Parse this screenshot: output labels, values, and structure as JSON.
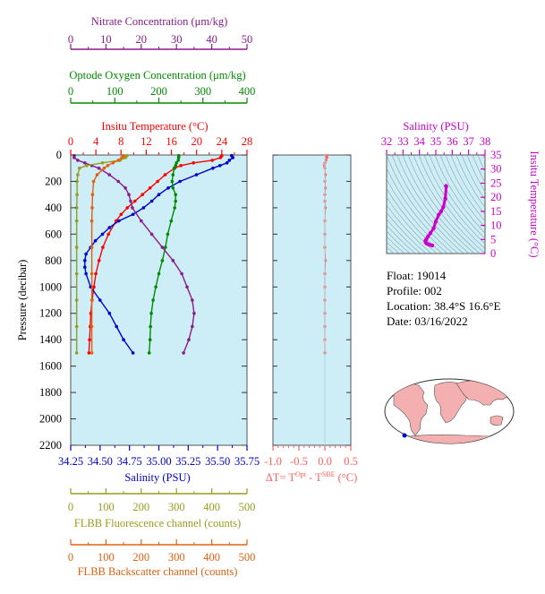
{
  "colors": {
    "nitrate": "#8b1a8b",
    "oxygen": "#008b00",
    "temperature": "#ff0000",
    "salinity": "#0000cd",
    "fluorescence": "#9b9b1e",
    "backscatter": "#e06010",
    "delta_t": "#ff6060",
    "ts_axis": "#cc00cc",
    "plot_bg": "#cdeef6",
    "land": "#f4b0b0"
  },
  "info": {
    "float": "Float:  19014",
    "profile": "Profile:  002",
    "location": "Location:  38.4°S  16.6°E",
    "date": "Date:  03/16/2022"
  },
  "chart_data": [
    {
      "type": "line",
      "name": "main-profile",
      "ylabel": "Pressure (decibar)",
      "ylim": [
        0,
        2200
      ],
      "yticks": [
        "0",
        "200",
        "400",
        "600",
        "800",
        "1000",
        "1200",
        "1400",
        "1600",
        "1800",
        "2000",
        "2200"
      ],
      "axes": {
        "nitrate": {
          "label": "Nitrate Concentration (μm/kg)",
          "range": [
            0,
            50
          ],
          "ticks": [
            "0",
            "10",
            "20",
            "30",
            "40",
            "50"
          ]
        },
        "oxygen": {
          "label": "Optode Oxygen Concentration (μm/kg)",
          "range": [
            0,
            400
          ],
          "ticks": [
            "0",
            "100",
            "200",
            "300",
            "400"
          ]
        },
        "temperature": {
          "label": "Insitu Temperature (°C)",
          "range": [
            0,
            28
          ],
          "ticks": [
            "0",
            "4",
            "8",
            "12",
            "16",
            "20",
            "24",
            "28"
          ]
        },
        "salinity": {
          "label": "Salinity (PSU)",
          "range": [
            34.25,
            35.75
          ],
          "ticks": [
            "34.25",
            "34.50",
            "34.75",
            "35.00",
            "35.25",
            "35.50",
            "35.75"
          ]
        },
        "fluorescence": {
          "label": "FLBB Fluorescence channel (counts)",
          "range": [
            0,
            500
          ],
          "ticks": [
            "0",
            "100",
            "200",
            "300",
            "400",
            "500"
          ]
        },
        "backscatter": {
          "label": "FLBB Backscatter channel (counts)",
          "range": [
            0,
            500
          ],
          "ticks": [
            "0",
            "100",
            "200",
            "300",
            "400",
            "500"
          ]
        }
      },
      "series": [
        {
          "key": "temperature",
          "pressure": [
            5,
            20,
            40,
            60,
            80,
            100,
            150,
            200,
            250,
            300,
            350,
            400,
            450,
            500,
            600,
            700,
            800,
            900,
            1000,
            1100,
            1200,
            1300,
            1400,
            1500
          ],
          "values": [
            24.0,
            23.8,
            22.5,
            19.5,
            17.5,
            16.5,
            15.0,
            13.8,
            12.6,
            11.4,
            10.2,
            9.0,
            8.0,
            7.2,
            6.0,
            5.1,
            4.5,
            4.0,
            3.7,
            3.4,
            3.2,
            3.1,
            3.0,
            2.9
          ]
        },
        {
          "key": "salinity",
          "pressure": [
            5,
            20,
            40,
            60,
            80,
            100,
            150,
            200,
            250,
            300,
            350,
            400,
            450,
            500,
            550,
            600,
            650,
            700,
            750,
            800,
            850,
            900,
            1000,
            1100,
            1200,
            1300,
            1400,
            1500
          ],
          "values": [
            35.62,
            35.63,
            35.6,
            35.58,
            35.52,
            35.46,
            35.32,
            35.18,
            35.08,
            35.0,
            34.94,
            34.87,
            34.78,
            34.66,
            34.58,
            34.52,
            34.46,
            34.42,
            34.38,
            34.37,
            34.37,
            34.38,
            34.42,
            34.5,
            34.58,
            34.64,
            34.7,
            34.78
          ]
        },
        {
          "key": "oxygen",
          "pressure": [
            5,
            20,
            40,
            60,
            80,
            100,
            150,
            200,
            250,
            300,
            350,
            400,
            500,
            600,
            700,
            800,
            900,
            1000,
            1100,
            1200,
            1300,
            1400,
            1500
          ],
          "values": [
            245,
            245,
            244,
            240,
            238,
            235,
            232,
            230,
            232,
            238,
            238,
            236,
            228,
            220,
            215,
            208,
            200,
            193,
            187,
            183,
            181,
            180,
            178
          ]
        },
        {
          "key": "nitrate",
          "pressure": [
            5,
            20,
            40,
            60,
            80,
            100,
            150,
            200,
            250,
            300,
            350,
            400,
            500,
            600,
            700,
            800,
            900,
            1000,
            1100,
            1200,
            1300,
            1400,
            1500
          ],
          "values": [
            1,
            1,
            2,
            4,
            6,
            8,
            11,
            13.5,
            15.5,
            16.5,
            17,
            17.5,
            20,
            23,
            26,
            29,
            31.5,
            33,
            34.5,
            35,
            34.5,
            33.5,
            32
          ]
        },
        {
          "key": "fluorescence",
          "pressure": [
            5,
            20,
            40,
            60,
            80,
            100,
            150,
            200,
            300,
            400,
            500,
            700,
            900,
            1100,
            1300,
            1500
          ],
          "values": [
            160,
            155,
            140,
            90,
            45,
            25,
            20,
            18,
            18,
            17,
            17,
            17,
            17,
            17,
            17,
            17
          ]
        },
        {
          "key": "backscatter",
          "pressure": [
            5,
            20,
            40,
            60,
            80,
            100,
            150,
            200,
            300,
            400,
            500,
            700,
            900,
            1100,
            1300,
            1500
          ],
          "values": [
            150,
            145,
            135,
            120,
            105,
            95,
            75,
            65,
            62,
            61,
            60,
            60,
            60,
            60,
            60,
            60
          ]
        }
      ]
    },
    {
      "type": "line",
      "name": "delta-t",
      "xlabel": "ΔT= T^Opt - T^SBE (°C)",
      "xlabel_main": "ΔT= T",
      "xlabel_sup1": "Opt",
      "xlabel_mid": " - T",
      "xlabel_sup2": "SBE",
      "xlabel_end": " (°C)",
      "xlim": [
        -1.0,
        0.5
      ],
      "xticks": [
        "-1.0",
        "-0.5",
        "0.0",
        "0.5"
      ],
      "series": [
        {
          "pressure": [
            5,
            20,
            40,
            60,
            80,
            100,
            150,
            200,
            250,
            300,
            350,
            400,
            500,
            600,
            700,
            800,
            900,
            1000,
            1100,
            1200,
            1300,
            1400,
            1500
          ],
          "values": [
            0.03,
            0.04,
            0.02,
            0.0,
            -0.01,
            0.0,
            0.01,
            0.0,
            0.01,
            0.0,
            0.0,
            0.01,
            0.0,
            0.0,
            0.0,
            0.01,
            0.0,
            0.0,
            0.0,
            0.0,
            0.0,
            0.0,
            0.0
          ]
        }
      ]
    },
    {
      "type": "scatter",
      "name": "t-s-diagram",
      "xlabel": "Salinity (PSU)",
      "ylabel": "Insitu Temperature (°C)",
      "xlim": [
        32,
        38
      ],
      "ylim": [
        0,
        35
      ],
      "xticks": [
        "32",
        "33",
        "34",
        "35",
        "36",
        "37",
        "38"
      ],
      "yticks": [
        "0",
        "5",
        "10",
        "15",
        "20",
        "25",
        "30",
        "35"
      ],
      "series": [
        {
          "salinity": [
            35.62,
            35.63,
            35.58,
            35.46,
            35.32,
            35.18,
            35.0,
            34.87,
            34.66,
            34.52,
            34.42,
            34.37,
            34.38,
            34.42,
            34.5,
            34.58,
            34.64,
            34.78
          ],
          "temperature": [
            24.0,
            23.8,
            19.5,
            16.5,
            15.0,
            13.8,
            11.4,
            9.0,
            7.2,
            6.0,
            5.1,
            4.5,
            4.0,
            3.7,
            3.4,
            3.2,
            3.1,
            2.9
          ]
        }
      ]
    }
  ]
}
